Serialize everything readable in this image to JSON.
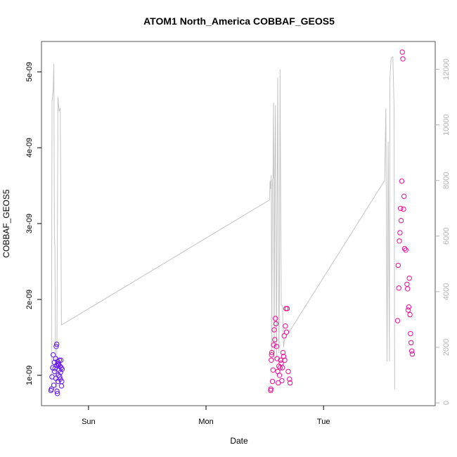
{
  "chart_data": {
    "type": "scatter",
    "title": "ATOM1 North_America COBBAF_GEOS5",
    "xlabel": "Date",
    "ylabel": "COBBAF_GEOS5",
    "x_ticks": [
      {
        "label": "Sun",
        "day": 1.0
      },
      {
        "label": "Mon",
        "day": 2.0
      },
      {
        "label": "Tue",
        "day": 3.0
      }
    ],
    "xlim": [
      0.6,
      3.95
    ],
    "ylim": [
      6e-10,
      5.4e-09
    ],
    "y_ticks": [
      {
        "label": "1e-09",
        "value": 1e-09
      },
      {
        "label": "2e-09",
        "value": 2e-09
      },
      {
        "label": "3e-09",
        "value": 3e-09
      },
      {
        "label": "4e-09",
        "value": 4e-09
      },
      {
        "label": "5e-09",
        "value": 5e-09
      }
    ],
    "y2lim": [
      -100,
      13000
    ],
    "y2_ticks": [
      {
        "label": "0",
        "value": 0
      },
      {
        "label": "2000",
        "value": 2000
      },
      {
        "label": "4000",
        "value": 4000
      },
      {
        "label": "6000",
        "value": 6000
      },
      {
        "label": "8000",
        "value": 8000
      },
      {
        "label": "10000",
        "value": 10000
      },
      {
        "label": "12000",
        "value": 12000
      }
    ],
    "grid": false,
    "colors": {
      "points_start": "#5b16f0",
      "points_end": "#ee0a96",
      "altitude_line": "#c4c4c4",
      "frame": "#555555"
    },
    "points": [
      {
        "x": 0.68,
        "y": 8e-10
      },
      {
        "x": 0.685,
        "y": 8.2e-10
      },
      {
        "x": 0.69,
        "y": 9.8e-10
      },
      {
        "x": 0.695,
        "y": 1.1e-09
      },
      {
        "x": 0.7,
        "y": 1.27e-09
      },
      {
        "x": 0.705,
        "y": 8.7e-10
      },
      {
        "x": 0.71,
        "y": 1.17e-09
      },
      {
        "x": 0.712,
        "y": 1.05e-09
      },
      {
        "x": 0.715,
        "y": 1.09e-09
      },
      {
        "x": 0.72,
        "y": 1.22e-09
      },
      {
        "x": 0.722,
        "y": 9.6e-10
      },
      {
        "x": 0.725,
        "y": 1.38e-09
      },
      {
        "x": 0.728,
        "y": 1.13e-09
      },
      {
        "x": 0.73,
        "y": 1.41e-09
      },
      {
        "x": 0.732,
        "y": 7.9e-10
      },
      {
        "x": 0.735,
        "y": 7.6e-10
      },
      {
        "x": 0.738,
        "y": 1.18e-09
      },
      {
        "x": 0.74,
        "y": 1.15e-09
      },
      {
        "x": 0.742,
        "y": 9.2e-10
      },
      {
        "x": 0.745,
        "y": 1e-09
      },
      {
        "x": 0.748,
        "y": 1.14e-09
      },
      {
        "x": 0.75,
        "y": 1.07e-09
      },
      {
        "x": 0.752,
        "y": 1.2e-09
      },
      {
        "x": 0.755,
        "y": 9.8e-10
      },
      {
        "x": 0.758,
        "y": 1.12e-09
      },
      {
        "x": 0.76,
        "y": 9.5e-10
      },
      {
        "x": 0.762,
        "y": 1.04e-09
      },
      {
        "x": 0.765,
        "y": 1.2e-09
      },
      {
        "x": 0.768,
        "y": 1.1e-09
      },
      {
        "x": 0.77,
        "y": 8.6e-10
      },
      {
        "x": 0.772,
        "y": 9.2e-10
      },
      {
        "x": 0.775,
        "y": 1.08e-09
      },
      {
        "x": 2.55,
        "y": 8e-10
      },
      {
        "x": 2.552,
        "y": 8.2e-10
      },
      {
        "x": 2.555,
        "y": 1.2e-09
      },
      {
        "x": 2.558,
        "y": 1.27e-09
      },
      {
        "x": 2.56,
        "y": 1.3e-09
      },
      {
        "x": 2.565,
        "y": 9.2e-10
      },
      {
        "x": 2.57,
        "y": 1.07e-09
      },
      {
        "x": 2.575,
        "y": 1.4e-09
      },
      {
        "x": 2.58,
        "y": 1.6e-09
      },
      {
        "x": 2.585,
        "y": 1.47e-09
      },
      {
        "x": 2.59,
        "y": 1.75e-09
      },
      {
        "x": 2.595,
        "y": 1.68e-09
      },
      {
        "x": 2.6,
        "y": 1.38e-09
      },
      {
        "x": 2.605,
        "y": 1.22e-09
      },
      {
        "x": 2.61,
        "y": 1.05e-09
      },
      {
        "x": 2.615,
        "y": 9e-10
      },
      {
        "x": 2.62,
        "y": 1.12e-09
      },
      {
        "x": 2.625,
        "y": 1e-09
      },
      {
        "x": 2.63,
        "y": 1.1e-09
      },
      {
        "x": 2.635,
        "y": 1.2e-09
      },
      {
        "x": 2.64,
        "y": 1.16e-09
      },
      {
        "x": 2.645,
        "y": 9.3e-10
      },
      {
        "x": 2.65,
        "y": 1.1e-09
      },
      {
        "x": 2.655,
        "y": 1.3e-09
      },
      {
        "x": 2.66,
        "y": 1.25e-09
      },
      {
        "x": 2.665,
        "y": 1.52e-09
      },
      {
        "x": 2.67,
        "y": 1.2e-09
      },
      {
        "x": 2.675,
        "y": 1.65e-09
      },
      {
        "x": 2.68,
        "y": 1.88e-09
      },
      {
        "x": 2.685,
        "y": 1.57e-09
      },
      {
        "x": 2.69,
        "y": 1.88e-09
      },
      {
        "x": 2.7,
        "y": 1.05e-09
      },
      {
        "x": 2.71,
        "y": 9.5e-10
      },
      {
        "x": 2.715,
        "y": 9e-10
      },
      {
        "x": 3.63,
        "y": 1.72e-09
      },
      {
        "x": 3.635,
        "y": 2.45e-09
      },
      {
        "x": 3.64,
        "y": 2.15e-09
      },
      {
        "x": 3.645,
        "y": 2.77e-09
      },
      {
        "x": 3.65,
        "y": 2.88e-09
      },
      {
        "x": 3.655,
        "y": 3.2e-09
      },
      {
        "x": 3.66,
        "y": 3.04e-09
      },
      {
        "x": 3.665,
        "y": 3.56e-09
      },
      {
        "x": 3.67,
        "y": 5.26e-09
      },
      {
        "x": 3.675,
        "y": 5.17e-09
      },
      {
        "x": 3.68,
        "y": 3.19e-09
      },
      {
        "x": 3.685,
        "y": 3.36e-09
      },
      {
        "x": 3.69,
        "y": 2.67e-09
      },
      {
        "x": 3.7,
        "y": 2.65e-09
      },
      {
        "x": 3.71,
        "y": 2.2e-09
      },
      {
        "x": 3.715,
        "y": 2.14e-09
      },
      {
        "x": 3.72,
        "y": 1.86e-09
      },
      {
        "x": 3.725,
        "y": 1.9e-09
      },
      {
        "x": 3.73,
        "y": 2.28e-09
      },
      {
        "x": 3.735,
        "y": 1.8e-09
      },
      {
        "x": 3.74,
        "y": 1.55e-09
      },
      {
        "x": 3.745,
        "y": 1.43e-09
      },
      {
        "x": 3.75,
        "y": 1.32e-09
      },
      {
        "x": 3.755,
        "y": 1.28e-09
      }
    ],
    "altitude_line": [
      {
        "x": 0.67,
        "y2": 500
      },
      {
        "x": 0.685,
        "y2": 500
      },
      {
        "x": 0.69,
        "y2": 10800
      },
      {
        "x": 0.7,
        "y2": 11300
      },
      {
        "x": 0.705,
        "y2": 12200
      },
      {
        "x": 0.71,
        "y2": 6000
      },
      {
        "x": 0.715,
        "y2": 5500
      },
      {
        "x": 0.72,
        "y2": 500
      },
      {
        "x": 0.73,
        "y2": 500
      },
      {
        "x": 0.74,
        "y2": 11000
      },
      {
        "x": 0.75,
        "y2": 10500
      },
      {
        "x": 0.76,
        "y2": 10600
      },
      {
        "x": 0.77,
        "y2": 2800
      },
      {
        "x": 2.54,
        "y2": 7300
      },
      {
        "x": 2.545,
        "y2": 8000
      },
      {
        "x": 2.55,
        "y2": 7700
      },
      {
        "x": 2.555,
        "y2": 8200
      },
      {
        "x": 2.56,
        "y2": 1800
      },
      {
        "x": 2.565,
        "y2": 8000
      },
      {
        "x": 2.57,
        "y2": 8100
      },
      {
        "x": 2.575,
        "y2": 10800
      },
      {
        "x": 2.58,
        "y2": 1500
      },
      {
        "x": 2.585,
        "y2": 8000
      },
      {
        "x": 2.59,
        "y2": 10700
      },
      {
        "x": 2.6,
        "y2": 1600
      },
      {
        "x": 2.61,
        "y2": 11700
      },
      {
        "x": 2.62,
        "y2": 1800
      },
      {
        "x": 2.625,
        "y2": 4300
      },
      {
        "x": 2.63,
        "y2": 12000
      },
      {
        "x": 2.64,
        "y2": 3500
      },
      {
        "x": 2.65,
        "y2": 3500
      },
      {
        "x": 2.66,
        "y2": 2000
      },
      {
        "x": 2.665,
        "y2": 2200
      },
      {
        "x": 2.67,
        "y2": 2300
      },
      {
        "x": 3.52,
        "y2": 8000
      },
      {
        "x": 3.53,
        "y2": 10600
      },
      {
        "x": 3.54,
        "y2": 1500
      },
      {
        "x": 3.55,
        "y2": 9400
      },
      {
        "x": 3.56,
        "y2": 1500
      },
      {
        "x": 3.565,
        "y2": 11700
      },
      {
        "x": 3.575,
        "y2": 12400
      },
      {
        "x": 3.59,
        "y2": 12450
      },
      {
        "x": 3.6,
        "y2": 10600
      },
      {
        "x": 3.605,
        "y2": 500
      }
    ]
  }
}
